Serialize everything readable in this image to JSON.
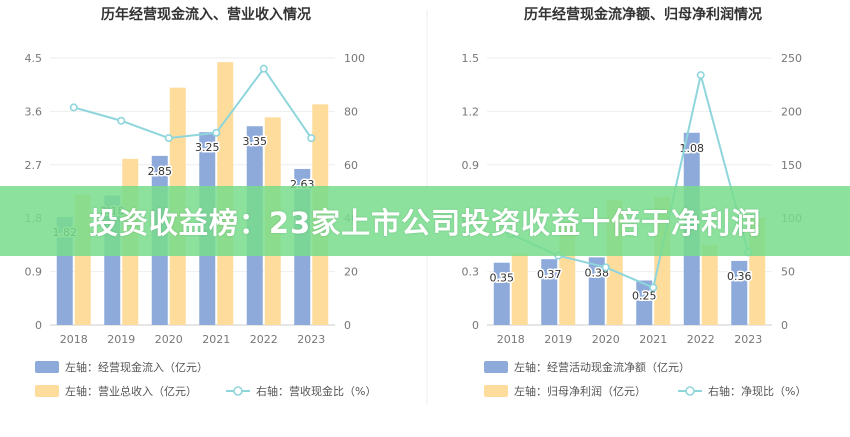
{
  "banner": {
    "text": "投资收益榜：23家上市公司投资收益十倍于净利润"
  },
  "colors": {
    "bar_primary": "#8eaadb",
    "bar_secondary": "#fddc9c",
    "line": "#8fd6dc",
    "text": "#333333",
    "axis": "#777777"
  },
  "chart_data": [
    {
      "type": "bar",
      "title": "历年经营现金流入、营业收入情况",
      "categories": [
        "2018",
        "2019",
        "2020",
        "2021",
        "2022",
        "2023"
      ],
      "left_ticks": [
        "4.5",
        "3.6",
        "2.7",
        "1.8",
        "0.9",
        "0"
      ],
      "right_ticks": [
        "100",
        "80",
        "60",
        "40",
        "20",
        "0"
      ],
      "ylim_left": [
        0,
        4.5
      ],
      "ylim_right": [
        0,
        100
      ],
      "series": [
        {
          "name": "左轴：经营现金流入（亿元）",
          "axis": "left",
          "values": [
            1.82,
            2.18,
            2.85,
            3.25,
            3.35,
            2.63
          ],
          "labels": [
            "1.82",
            "2.18",
            "2.85",
            "3.25",
            "3.35",
            "2.63"
          ]
        },
        {
          "name": "左轴：营业总收入（亿元）",
          "axis": "left",
          "values": [
            2.2,
            2.8,
            4.0,
            4.43,
            3.5,
            3.72
          ],
          "labels": []
        },
        {
          "name": "右轴：营收现金比（%）",
          "axis": "right",
          "type": "line",
          "values": [
            81.5,
            76.5,
            70,
            72,
            96,
            70
          ]
        }
      ]
    },
    {
      "type": "bar",
      "title": "历年经营现金流净额、归母净利润情况",
      "categories": [
        "2018",
        "2019",
        "2020",
        "2021",
        "2022",
        "2023"
      ],
      "left_ticks": [
        "1.5",
        "1.2",
        "0.9",
        "0.6",
        "0.3",
        "0"
      ],
      "right_ticks": [
        "250",
        "200",
        "150",
        "100",
        "50",
        "0"
      ],
      "ylim_left": [
        0,
        1.5
      ],
      "ylim_right": [
        0,
        250
      ],
      "series": [
        {
          "name": "左轴：经营活动现金流净额（亿元）",
          "axis": "left",
          "values": [
            0.35,
            0.37,
            0.38,
            0.25,
            1.08,
            0.36
          ],
          "labels": [
            "0.35",
            "0.37",
            "0.38",
            "0.25",
            "1.08",
            "0.36"
          ]
        },
        {
          "name": "左轴：归母净利润（亿元）",
          "axis": "left",
          "values": [
            0.4,
            0.58,
            0.7,
            0.72,
            0.45,
            0.6
          ],
          "labels": []
        },
        {
          "name": "右轴：净现比（%）",
          "axis": "right",
          "type": "line",
          "values": [
            85,
            65,
            54,
            35,
            234,
            68
          ]
        }
      ]
    }
  ]
}
